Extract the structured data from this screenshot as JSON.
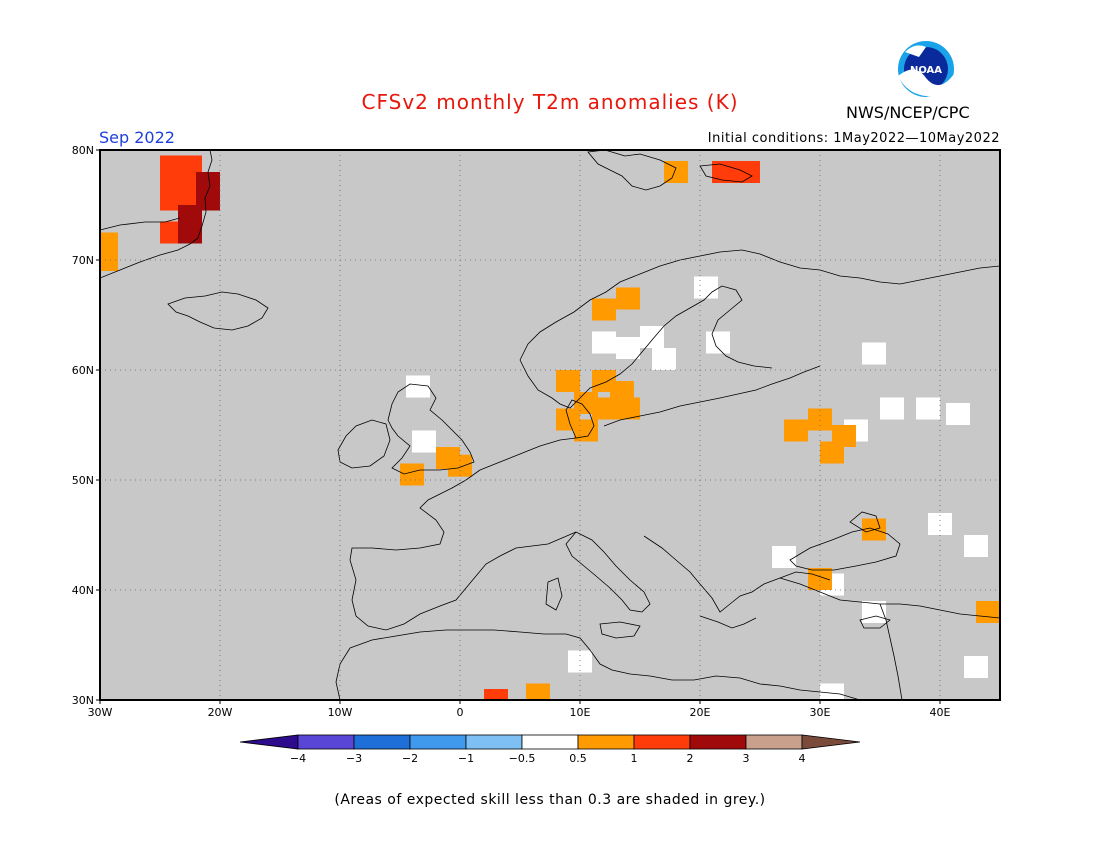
{
  "header": {
    "title": "CFSv2 monthly T2m anomalies (K)",
    "period": "Sep 2022",
    "initial_conditions": "Initial conditions: 1May2022—10May2022",
    "agency": "NWS/NCEP/CPC",
    "logo_text": "NOAA"
  },
  "map": {
    "lat_labels": [
      "80N",
      "70N",
      "60N",
      "50N",
      "40N",
      "30N"
    ],
    "lon_labels": [
      "30W",
      "20W",
      "10W",
      "0",
      "10E",
      "20E",
      "30E",
      "40E"
    ],
    "background_color": "#c8c8c8",
    "extent": {
      "lon": [
        -30,
        45
      ],
      "lat": [
        30,
        80
      ]
    },
    "anomaly_cells": [
      {
        "lon": -24,
        "lat": 78.5,
        "value": 1.5
      },
      {
        "lon": -22.5,
        "lat": 78.5,
        "value": 1.5
      },
      {
        "lon": -24,
        "lat": 77,
        "value": 1.5
      },
      {
        "lon": -22.5,
        "lat": 77,
        "value": 1.5
      },
      {
        "lon": -21,
        "lat": 77,
        "value": 2.5
      },
      {
        "lon": -24,
        "lat": 75.5,
        "value": 1.5
      },
      {
        "lon": -22.5,
        "lat": 75.5,
        "value": 1.5
      },
      {
        "lon": -21,
        "lat": 75.5,
        "value": 2.5
      },
      {
        "lon": -22.5,
        "lat": 74,
        "value": 2.5
      },
      {
        "lon": -24,
        "lat": 72.5,
        "value": 1.5
      },
      {
        "lon": -22.5,
        "lat": 72.5,
        "value": 2.5
      },
      {
        "lon": -29.5,
        "lat": 71.5,
        "value": 0.75
      },
      {
        "lon": -29.5,
        "lat": 70,
        "value": 0.75
      },
      {
        "lon": 18,
        "lat": 78,
        "value": 0.75
      },
      {
        "lon": 22,
        "lat": 78,
        "value": 1.5
      },
      {
        "lon": 24,
        "lat": 78,
        "value": 1.5
      },
      {
        "lon": 12,
        "lat": 65.5,
        "value": 0.75
      },
      {
        "lon": 14,
        "lat": 66.5,
        "value": 0.75
      },
      {
        "lon": 9,
        "lat": 59,
        "value": 0.75
      },
      {
        "lon": 12,
        "lat": 59,
        "value": 0.75
      },
      {
        "lon": 13.5,
        "lat": 58,
        "value": 0.75
      },
      {
        "lon": 10.5,
        "lat": 57,
        "value": 0.75
      },
      {
        "lon": 12,
        "lat": 56.5,
        "value": 0.75
      },
      {
        "lon": 14,
        "lat": 56.5,
        "value": 0.75
      },
      {
        "lon": 9,
        "lat": 55.5,
        "value": 0.75
      },
      {
        "lon": 10.5,
        "lat": 54.5,
        "value": 0.75
      },
      {
        "lon": -1,
        "lat": 52,
        "value": 0.75
      },
      {
        "lon": 0,
        "lat": 51.3,
        "value": 0.75
      },
      {
        "lon": -4,
        "lat": 50.5,
        "value": 0.75
      },
      {
        "lon": 28,
        "lat": 54.5,
        "value": 0.75
      },
      {
        "lon": 30,
        "lat": 55.5,
        "value": 0.75
      },
      {
        "lon": 32,
        "lat": 54,
        "value": 0.75
      },
      {
        "lon": 31,
        "lat": 52.5,
        "value": 0.75
      },
      {
        "lon": 34.5,
        "lat": 45.5,
        "value": 0.75
      },
      {
        "lon": 30,
        "lat": 41,
        "value": 0.75
      },
      {
        "lon": 44,
        "lat": 38,
        "value": 0.75
      },
      {
        "lon": 6.5,
        "lat": 30.5,
        "value": 0.75
      },
      {
        "lon": 3,
        "lat": 30,
        "value": 1.5
      }
    ],
    "neutral_cells": [
      {
        "lon": 12,
        "lat": 62.5
      },
      {
        "lon": 14,
        "lat": 62
      },
      {
        "lon": 16,
        "lat": 63
      },
      {
        "lon": 17,
        "lat": 61
      },
      {
        "lon": 21.5,
        "lat": 62.5
      },
      {
        "lon": 20.5,
        "lat": 67.5
      },
      {
        "lon": 34.5,
        "lat": 61.5
      },
      {
        "lon": 36,
        "lat": 56.5
      },
      {
        "lon": 39,
        "lat": 56.5
      },
      {
        "lon": 41.5,
        "lat": 56
      },
      {
        "lon": 33,
        "lat": 54.5
      },
      {
        "lon": -3,
        "lat": 53.5
      },
      {
        "lon": -3.5,
        "lat": 58.5
      },
      {
        "lon": 40,
        "lat": 46
      },
      {
        "lon": 43,
        "lat": 44
      },
      {
        "lon": 27,
        "lat": 43
      },
      {
        "lon": 31,
        "lat": 40.5
      },
      {
        "lon": 34.5,
        "lat": 38
      },
      {
        "lon": 43,
        "lat": 33
      },
      {
        "lon": 10,
        "lat": 33.5
      },
      {
        "lon": 31,
        "lat": 30.5
      }
    ]
  },
  "colorbar": {
    "tick_labels": [
      "−4",
      "−3",
      "−2",
      "−1",
      "−0.5",
      "0.5",
      "1",
      "2",
      "3",
      "4"
    ],
    "colors": [
      "#2e0a8c",
      "#5a46d6",
      "#1f6fd8",
      "#3f9aee",
      "#7ec0f4",
      "#ffffff",
      "#ff9a00",
      "#ff3c0a",
      "#a00a0a",
      "#c8a08c",
      "#7a4a3a"
    ]
  },
  "footnote": "(Areas of expected skill less than 0.3 are shaded in grey.)"
}
